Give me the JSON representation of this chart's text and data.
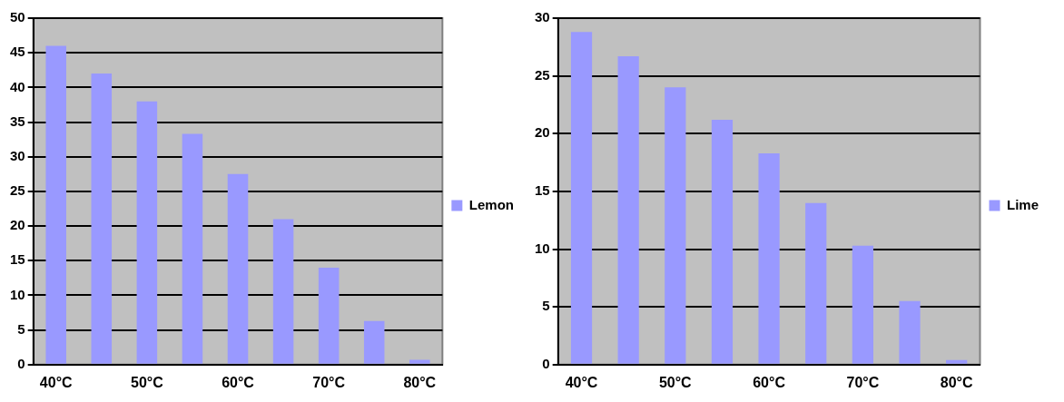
{
  "chart_data": [
    {
      "type": "bar",
      "categories": [
        "40°C",
        null,
        "50°C",
        null,
        "60°C",
        null,
        "70°C",
        null,
        "80°C"
      ],
      "series": [
        {
          "name": "Lemon",
          "color": "#9999ff",
          "values": [
            46,
            42,
            38,
            33.3,
            27.5,
            21,
            14,
            6.3,
            0.7
          ]
        }
      ],
      "ylim": [
        0,
        50
      ],
      "yticks": [
        0,
        5,
        10,
        15,
        20,
        25,
        30,
        35,
        40,
        45,
        50
      ],
      "grid": "y",
      "legend": "right"
    },
    {
      "type": "bar",
      "categories": [
        "40°C",
        null,
        "50°C",
        null,
        "60°C",
        null,
        "70°C",
        null,
        "80°C"
      ],
      "series": [
        {
          "name": "Lime",
          "color": "#9999ff",
          "values": [
            28.8,
            26.7,
            24,
            21.2,
            18.3,
            14,
            10.3,
            5.5,
            0.4
          ]
        }
      ],
      "ylim": [
        0,
        30
      ],
      "yticks": [
        0,
        5,
        10,
        15,
        20,
        25,
        30
      ],
      "grid": "y",
      "legend": "right"
    }
  ]
}
